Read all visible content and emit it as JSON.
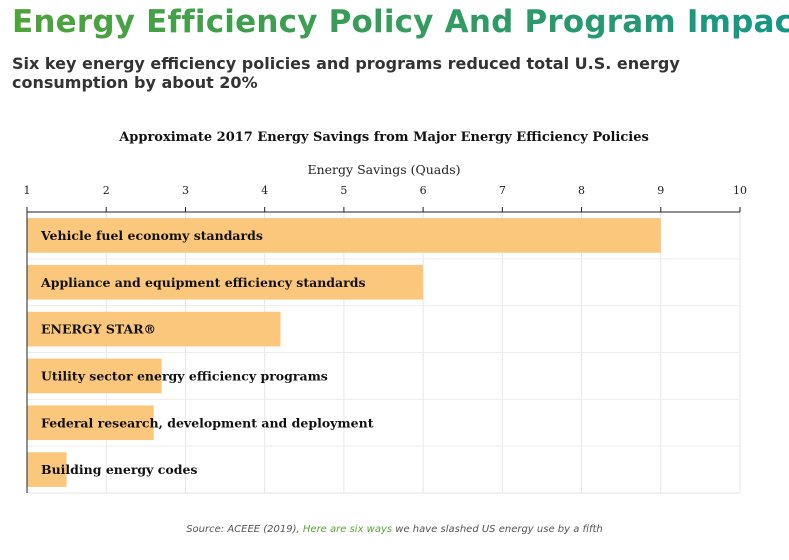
{
  "header": {
    "title": "Energy Efficiency Policy And Program Impacts",
    "subtitle": "Six key energy efficiency policies and programs reduced total U.S. energy consumption by about 20%"
  },
  "chart_data": {
    "type": "bar",
    "orientation": "horizontal",
    "title": "Approximate 2017 Energy Savings from Major Energy Efficiency Policies",
    "xlabel": "Energy Savings (Quads)",
    "ylabel": "",
    "xlim": [
      1,
      10
    ],
    "ticks": [
      "1",
      "2",
      "3",
      "4",
      "5",
      "6",
      "7",
      "8",
      "9",
      "10"
    ],
    "categories": [
      "Vehicle fuel economy standards",
      "Appliance and equipment efficiency standards",
      "ENERGY STAR®",
      "Utility sector energy efficiency programs",
      "Federal research, development and deployment",
      "Building energy codes"
    ],
    "values": [
      9.0,
      6.0,
      4.2,
      2.7,
      2.6,
      1.5
    ],
    "grid": true,
    "bar_color": "#fbc77d"
  },
  "footer": {
    "source_prefix": "Source: ACEEE (2019), ",
    "source_link": "Here are six ways",
    "source_suffix": " we have slashed US energy use by a fifth"
  }
}
